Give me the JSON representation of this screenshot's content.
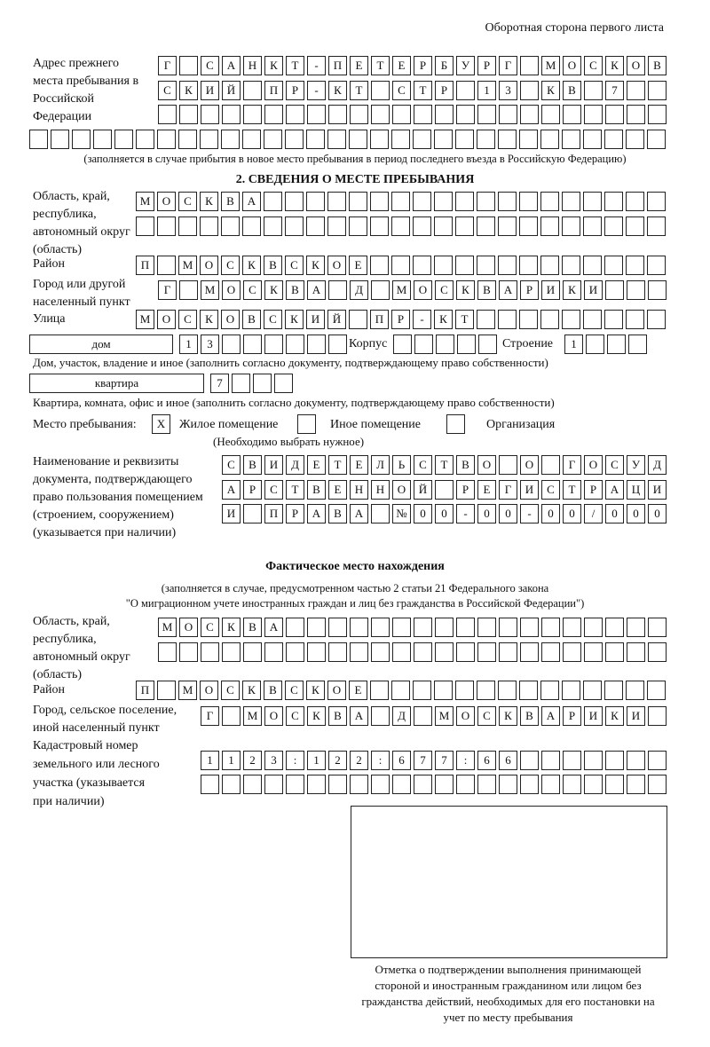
{
  "header": "Оборотная сторона первого листа",
  "prev_address": {
    "label": "Адрес прежнего места пребывания в Российской Федерации",
    "rows": [
      [
        "Г",
        " ",
        "С",
        "А",
        "Н",
        "К",
        "Т",
        "-",
        "П",
        "Е",
        "Т",
        "Е",
        "Р",
        "Б",
        "У",
        "Р",
        "Г",
        " ",
        "М",
        "О",
        "С",
        "К",
        "О",
        "В"
      ],
      [
        "С",
        "К",
        "И",
        "Й",
        " ",
        "П",
        "Р",
        "-",
        "К",
        "Т",
        " ",
        "С",
        "Т",
        "Р",
        " ",
        "1",
        "3",
        " ",
        "К",
        "В",
        " ",
        "7",
        " ",
        " "
      ],
      [
        "",
        "",
        "",
        "",
        "",
        "",
        "",
        "",
        "",
        "",
        "",
        "",
        "",
        "",
        "",
        "",
        "",
        "",
        "",
        "",
        "",
        "",
        "",
        ""
      ],
      [
        "",
        "",
        "",
        "",
        "",
        "",
        "",
        "",
        "",
        "",
        "",
        "",
        "",
        "",
        "",
        "",
        "",
        "",
        "",
        "",
        "",
        "",
        "",
        "",
        "",
        "",
        "",
        "",
        "",
        ""
      ]
    ],
    "note": "(заполняется в случае прибытия в новое место пребывания в период последнего въезда в Российскую Федерацию)"
  },
  "section2": {
    "title": "2. СВЕДЕНИЯ О МЕСТЕ ПРЕБЫВАНИЯ",
    "region_label": "Область, край, республика, автономный округ (область)",
    "region_rows": [
      [
        "М",
        "О",
        "С",
        "К",
        "В",
        "А",
        "",
        "",
        "",
        "",
        "",
        "",
        "",
        "",
        "",
        "",
        "",
        "",
        "",
        "",
        "",
        "",
        "",
        "",
        ""
      ],
      [
        "",
        "",
        "",
        "",
        "",
        "",
        "",
        "",
        "",
        "",
        "",
        "",
        "",
        "",
        "",
        "",
        "",
        "",
        "",
        "",
        "",
        "",
        "",
        "",
        ""
      ]
    ],
    "district_label": "Район",
    "district_row": [
      "П",
      " ",
      "М",
      "О",
      "С",
      "К",
      "В",
      "С",
      "К",
      "О",
      "Е",
      "",
      "",
      "",
      "",
      "",
      "",
      "",
      "",
      "",
      "",
      "",
      "",
      "",
      ""
    ],
    "city_label": "Город или другой населенный пункт",
    "city_row": [
      "Г",
      " ",
      "М",
      "О",
      "С",
      "К",
      "В",
      "А",
      " ",
      "Д",
      " ",
      "М",
      "О",
      "С",
      "К",
      "В",
      "А",
      "Р",
      "И",
      "К",
      "И",
      "",
      "",
      ""
    ],
    "street_label": "Улица",
    "street_row": [
      "М",
      "О",
      "С",
      "К",
      "О",
      "В",
      "С",
      "К",
      "И",
      "Й",
      " ",
      "П",
      "Р",
      "-",
      "К",
      "Т",
      "",
      "",
      "",
      "",
      "",
      "",
      "",
      "",
      ""
    ],
    "house_type": "дом",
    "house_row": [
      "1",
      "3",
      "",
      "",
      "",
      "",
      "",
      ""
    ],
    "korpus_label": "Корпус",
    "korpus_row": [
      "",
      "",
      "",
      "",
      ""
    ],
    "building_label": "Строение",
    "building_row": [
      "1",
      "",
      "",
      ""
    ],
    "house_note": "Дом, участок, владение и иное (заполнить согласно документу, подтверждающему право собственности)",
    "apt_type": "квартира",
    "apt_row": [
      "7",
      "",
      "",
      ""
    ],
    "apt_note": "Квартира, комната, офис и иное (заполнить согласно документу, подтверждающему право собственности)",
    "place_label": "Место пребывания:",
    "place_options": [
      {
        "label": "Жилое помещение",
        "mark": "X"
      },
      {
        "label": "Иное помещение",
        "mark": ""
      },
      {
        "label": "Организация",
        "mark": ""
      }
    ],
    "place_note": "(Необходимо выбрать нужное)",
    "doc_label": "Наименование и реквизиты документа, подтверждающего право пользования помещением (строением, сооружением) (указывается при наличии)",
    "doc_rows": [
      [
        "С",
        "В",
        "И",
        "Д",
        "Е",
        "Т",
        "Е",
        "Л",
        "Ь",
        "С",
        "Т",
        "В",
        "О",
        " ",
        "О",
        " ",
        "Г",
        "О",
        "С",
        "У",
        "Д"
      ],
      [
        "А",
        "Р",
        "С",
        "Т",
        "В",
        "Е",
        "Н",
        "Н",
        "О",
        "Й",
        " ",
        "Р",
        "Е",
        "Г",
        "И",
        "С",
        "Т",
        "Р",
        "А",
        "Ц",
        "И"
      ],
      [
        "И",
        " ",
        "П",
        "Р",
        "А",
        "В",
        "А",
        " ",
        "№",
        "0",
        "0",
        "-",
        "0",
        "0",
        "-",
        "0",
        "0",
        "/",
        "0",
        "0",
        "0"
      ]
    ]
  },
  "actual": {
    "title": "Фактическое место нахождения",
    "note1": "(заполняется в случае, предусмотренном частью 2 статьи 21 Федерального закона",
    "note2": "\"О миграционном учете иностранных граждан и лиц без гражданства в Российской Федерации\")",
    "region_label": "Область, край, республика, автономный округ (область)",
    "region_rows": [
      [
        "М",
        "О",
        "С",
        "К",
        "В",
        "А",
        "",
        "",
        "",
        "",
        "",
        "",
        "",
        "",
        "",
        "",
        "",
        "",
        "",
        "",
        "",
        "",
        "",
        ""
      ],
      [
        "",
        "",
        "",
        "",
        "",
        "",
        "",
        "",
        "",
        "",
        "",
        "",
        "",
        "",
        "",
        "",
        "",
        "",
        "",
        "",
        "",
        "",
        "",
        ""
      ]
    ],
    "district_label": "Район",
    "district_row": [
      "П",
      " ",
      "М",
      "О",
      "С",
      "К",
      "В",
      "С",
      "К",
      "О",
      "Е",
      "",
      "",
      "",
      "",
      "",
      "",
      "",
      "",
      "",
      "",
      "",
      "",
      "",
      ""
    ],
    "city_label": "Город, сельское поселение, иной населенный пункт",
    "city_row": [
      "Г",
      " ",
      "М",
      "О",
      "С",
      "К",
      "В",
      "А",
      " ",
      "Д",
      " ",
      "М",
      "О",
      "С",
      "К",
      "В",
      "А",
      "Р",
      "И",
      "К",
      "И",
      ""
    ],
    "cadastre_label": "Кадастровый номер земельного или лесного участка (указывается при наличии)",
    "cadastre_rows": [
      [
        "1",
        "1",
        "2",
        "3",
        ":",
        "1",
        "2",
        "2",
        ":",
        "6",
        "7",
        "7",
        ":",
        "6",
        "6",
        "",
        "",
        "",
        "",
        "",
        "",
        ""
      ],
      [
        "",
        "",
        "",
        "",
        "",
        "",
        "",
        "",
        "",
        "",
        "",
        "",
        "",
        "",
        "",
        "",
        "",
        "",
        "",
        "",
        "",
        ""
      ]
    ],
    "stamp_caption": "Отметка о подтверждении выполнения принимающей стороной и иностранным гражданином или лицом без гражданства действий, необходимых для его постановки на учет по месту пребывания"
  }
}
